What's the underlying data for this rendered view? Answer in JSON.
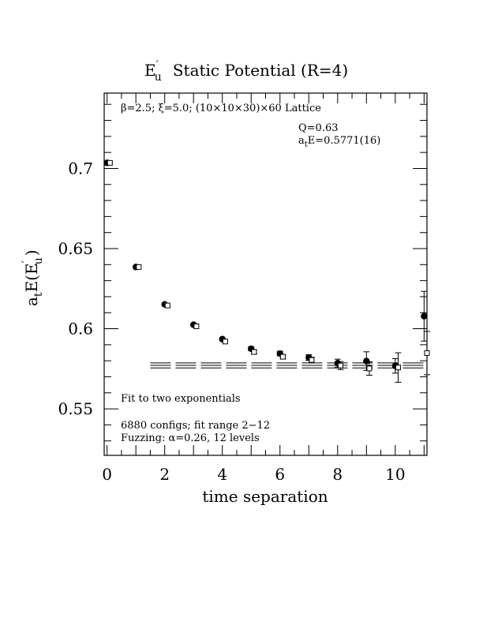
{
  "chart_data": {
    "type": "scatter",
    "title": "E′u  Static Potential (R=4)",
    "title_parts": {
      "symbol": "E",
      "prime": "′",
      "sub": "u",
      "rest": "Static Potential (R=4)"
    },
    "xlabel": "time separation",
    "ylabel": "atE(E′u)",
    "ylabel_parts": {
      "a": "a",
      "a_sub": "t",
      "mid": "E(E",
      "prime": "′",
      "sub": "u",
      "close": ")"
    },
    "xlim": [
      -0.1,
      11.1
    ],
    "ylim": [
      0.521,
      0.747
    ],
    "xticks": [
      0,
      2,
      4,
      6,
      8,
      10
    ],
    "xtick_labels": [
      "0",
      "2",
      "4",
      "6",
      "8",
      "10"
    ],
    "yticks": [
      0.55,
      0.6,
      0.65,
      0.7
    ],
    "ytick_labels": [
      "0.55",
      "0.6",
      "0.65",
      "0.7"
    ],
    "annotations": {
      "lattice": "β=2.5; ξ=5.0; (10×10×30)×60 Lattice",
      "q": "Q=0.63",
      "fit_value": "atE=0.5771(16)",
      "fit_value_parts": {
        "a": "a",
        "sub": "t",
        "rest": "E=0.5771(16)"
      },
      "fit_method": "Fit to two exponentials",
      "configs": "6880 configs; fit range 2−12",
      "fuzzing": "Fuzzing: α=0.26, 12 levels"
    },
    "fit": {
      "value": 0.5771,
      "error": 0.0016,
      "x_range": [
        1.5,
        11.1
      ]
    },
    "series": [
      {
        "marker": "filled-circle",
        "x": [
          0,
          1,
          2,
          3,
          4,
          5,
          6,
          7,
          8,
          9,
          10,
          11
        ],
        "y": [
          0.7035,
          0.6385,
          0.6152,
          0.6025,
          0.5935,
          0.5875,
          0.5845,
          0.582,
          0.5785,
          0.5798,
          0.5768,
          0.6078
        ],
        "err": [
          0.0005,
          0.0006,
          0.0007,
          0.0008,
          0.0009,
          0.0011,
          0.0014,
          0.0018,
          0.0025,
          0.0058,
          0.0045,
          0.0155
        ]
      },
      {
        "marker": "open-square",
        "x": [
          0.1,
          1.1,
          2.1,
          3.1,
          4.1,
          5.1,
          6.1,
          7.1,
          8.1,
          9.1,
          10.1,
          11.1
        ],
        "y": [
          0.7035,
          0.6385,
          0.6145,
          0.6015,
          0.592,
          0.5855,
          0.5825,
          0.5805,
          0.577,
          0.5752,
          0.5758,
          0.5848
        ],
        "err": [
          0.0005,
          0.0006,
          0.0007,
          0.0008,
          0.0009,
          0.0011,
          0.0013,
          0.0017,
          0.0025,
          0.0042,
          0.0092,
          0.0135
        ]
      }
    ]
  }
}
